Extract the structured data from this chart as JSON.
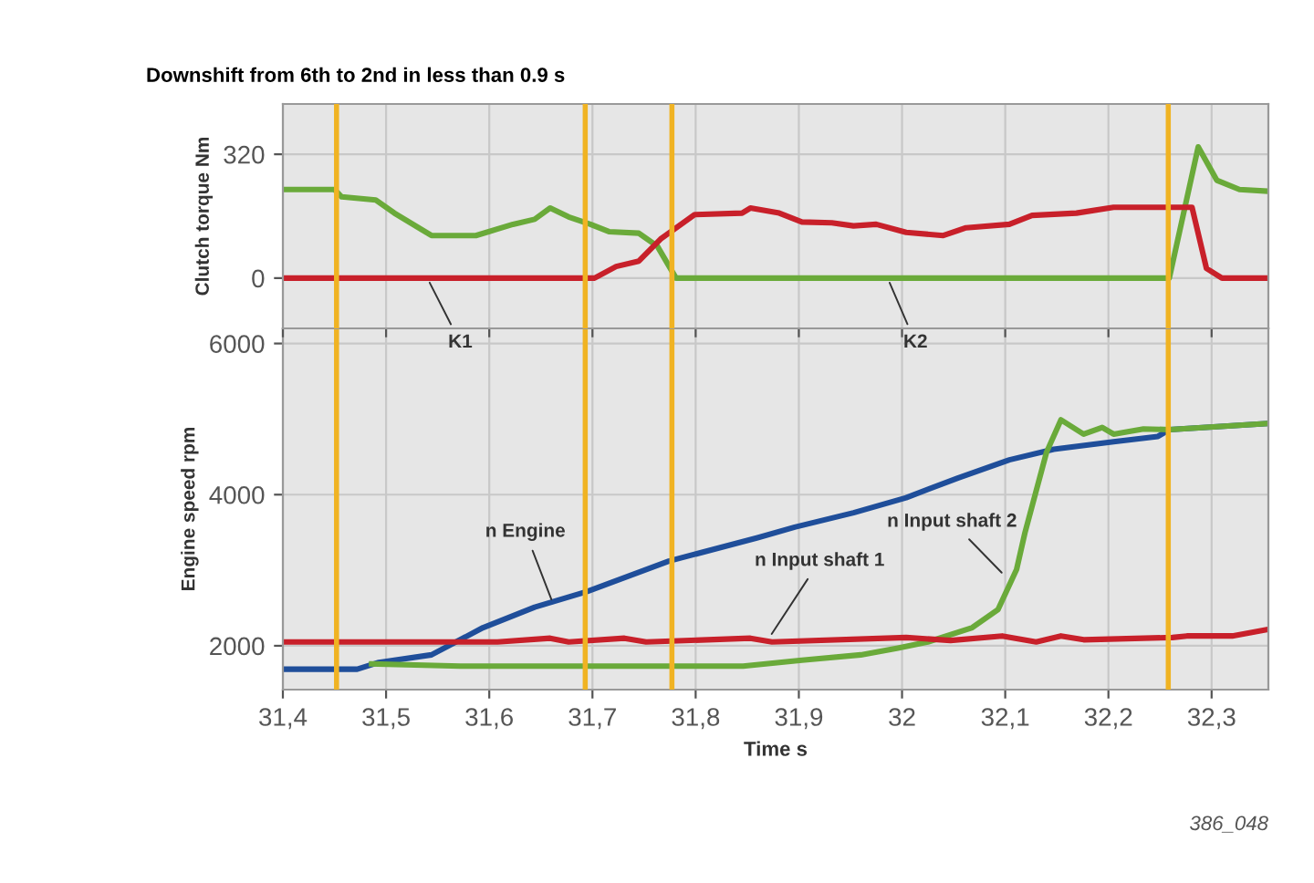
{
  "chart_data": [
    {
      "type": "line",
      "title": "Downshift from 6th to 2nd in less than 0.9 s",
      "ylabel": "Clutch torque Nm",
      "xlim": [
        31.4,
        32.355
      ],
      "xticks": [
        {
          "value": 31.4,
          "label": null
        },
        {
          "value": 31.5,
          "label": null
        },
        {
          "value": 31.6,
          "label": null
        },
        {
          "value": 31.7,
          "label": null
        },
        {
          "value": 31.8,
          "label": null
        },
        {
          "value": 31.9,
          "label": null
        },
        {
          "value": 32,
          "label": null
        },
        {
          "value": 32.1,
          "label": null
        },
        {
          "value": 32.2,
          "label": null
        },
        {
          "value": 32.3,
          "label": null
        }
      ],
      "ylim": [
        -130,
        450
      ],
      "yticks": [
        0,
        320
      ],
      "tick_labels": "y",
      "grid": true,
      "series": [
        {
          "color": "#6aaa3a",
          "x": [
            31.4,
            31.45,
            31.457,
            31.49,
            31.508,
            31.544,
            31.587,
            31.623,
            31.644,
            31.659,
            31.677,
            31.698,
            31.716,
            31.745,
            31.763,
            31.781,
            32.259,
            32.287,
            32.305,
            32.327,
            32.352
          ],
          "values": [
            229,
            229,
            210,
            202,
            168,
            110,
            110,
            139,
            152,
            181,
            158,
            139,
            120,
            116,
            82,
            0,
            0,
            339,
            253,
            229,
            225
          ]
        },
        {
          "color": "#c8202a",
          "x": [
            31.4,
            31.702,
            31.723,
            31.745,
            31.766,
            31.799,
            31.845,
            31.853,
            31.881,
            31.903,
            31.932,
            31.953,
            31.975,
            32.004,
            32.04,
            32.062,
            32.104,
            32.126,
            32.169,
            32.205,
            32.281,
            32.295,
            32.31,
            32.352
          ],
          "values": [
            0,
            0,
            30,
            44,
            101,
            164,
            168,
            181,
            168,
            145,
            143,
            135,
            139,
            118,
            110,
            130,
            139,
            162,
            168,
            183,
            183,
            25,
            0,
            0
          ]
        }
      ],
      "ref_lines": [
        {
          "axis": "x",
          "value": 31.452,
          "color": "#f0b323"
        },
        {
          "axis": "x",
          "value": 31.693,
          "color": "#f0b323"
        },
        {
          "axis": "x",
          "value": 31.777,
          "color": "#f0b323"
        },
        {
          "axis": "x",
          "value": 32.258,
          "color": "#f0b323"
        }
      ],
      "annotations": [
        {
          "text": "K1",
          "x": 31.54,
          "y": 0
        },
        {
          "text": "K2",
          "x": 31.986,
          "y": 0
        }
      ]
    },
    {
      "type": "line",
      "xlabel": "Time s",
      "ylabel": "Engine speed rpm",
      "xlim": [
        31.4,
        32.355
      ],
      "xticks": [
        {
          "value": 31.4,
          "label": "31,4"
        },
        {
          "value": 31.5,
          "label": "31,5"
        },
        {
          "value": 31.6,
          "label": "31,6"
        },
        {
          "value": 31.7,
          "label": "31,7"
        },
        {
          "value": 31.8,
          "label": "31,8"
        },
        {
          "value": 31.9,
          "label": "31,9"
        },
        {
          "value": 32,
          "label": "32"
        },
        {
          "value": 32.1,
          "label": "32,1"
        },
        {
          "value": 32.2,
          "label": "32,2"
        },
        {
          "value": 32.3,
          "label": "32,3"
        }
      ],
      "ylim": [
        1420,
        6200
      ],
      "yticks": [
        2000,
        4000,
        6000
      ],
      "grid": true,
      "series": [
        {
          "color": "#1f4e9a",
          "x": [
            31.4,
            31.472,
            31.493,
            31.544,
            31.594,
            31.644,
            31.695,
            31.774,
            31.86,
            31.896,
            31.953,
            32.004,
            32.054,
            32.104,
            32.147,
            32.205,
            32.248,
            32.259,
            32.352
          ],
          "values": [
            1690,
            1690,
            1780,
            1880,
            2240,
            2510,
            2720,
            3120,
            3430,
            3570,
            3760,
            3960,
            4220,
            4460,
            4600,
            4700,
            4770,
            4860,
            4940
          ]
        },
        {
          "color": "#6aaa3a",
          "x": [
            31.486,
            31.572,
            31.846,
            31.903,
            31.96,
            31.996,
            32.025,
            32.068,
            32.093,
            32.111,
            32.119,
            32.14,
            32.154,
            32.176,
            32.194,
            32.205,
            32.234,
            32.259,
            32.352
          ],
          "values": [
            1760,
            1730,
            1730,
            1810,
            1880,
            1970,
            2050,
            2240,
            2480,
            3010,
            3490,
            4560,
            4990,
            4800,
            4890,
            4800,
            4870,
            4860,
            4940
          ]
        },
        {
          "color": "#c8202a",
          "x": [
            31.4,
            31.608,
            31.659,
            31.677,
            31.731,
            31.752,
            31.853,
            31.874,
            32.004,
            32.047,
            32.097,
            32.13,
            32.154,
            32.176,
            32.262,
            32.276,
            32.32,
            32.352
          ],
          "values": [
            2050,
            2050,
            2100,
            2050,
            2100,
            2050,
            2100,
            2050,
            2110,
            2070,
            2130,
            2050,
            2130,
            2080,
            2110,
            2130,
            2130,
            2210
          ]
        }
      ],
      "ref_lines": [
        {
          "axis": "x",
          "value": 31.452,
          "color": "#f0b323"
        },
        {
          "axis": "x",
          "value": 31.693,
          "color": "#f0b323"
        },
        {
          "axis": "x",
          "value": 31.777,
          "color": "#f0b323"
        },
        {
          "axis": "x",
          "value": 32.258,
          "color": "#f0b323"
        }
      ],
      "annotations": [
        {
          "text": "n Engine",
          "x": 31.662,
          "y": 2550
        },
        {
          "text": "n Input shaft 1",
          "x": 31.871,
          "y": 2100
        },
        {
          "text": "n Input shaft 2",
          "x": 32.1,
          "y": 2920
        },
        "386_048"
      ]
    }
  ]
}
